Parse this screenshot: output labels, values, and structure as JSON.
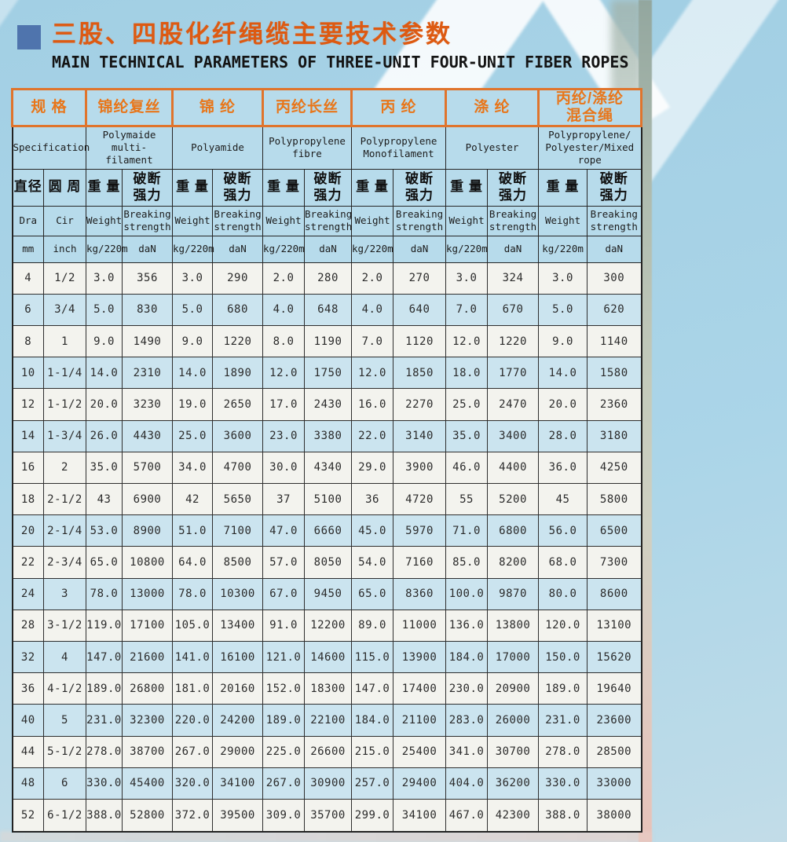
{
  "header": {
    "title_zh": "三股、四股化纤绳缆主要技术参数",
    "title_en": "MAIN TECHNICAL PARAMETERS OF THREE-UNIT FOUR-UNIT FIBER ROPES"
  },
  "table": {
    "spec": {
      "zh": "规 格",
      "en": "Specification",
      "diameter_zh": "直径",
      "diameter_en": "Dra",
      "diameter_unit": "mm",
      "circumference_zh": "圆 周",
      "circumference_en": "Cir",
      "circumference_unit": "inch"
    },
    "measures": {
      "weight_zh": "重 量",
      "weight_en": "Weight",
      "weight_unit": "kg/220m",
      "strength_zh": "破断\n强力",
      "strength_en": "Breaking\nstrength",
      "strength_unit": "daN"
    },
    "materials": [
      {
        "zh": "锦纶复丝",
        "en": "Polymaide multi-\nfilament"
      },
      {
        "zh": "锦 纶",
        "en": "Polyamide"
      },
      {
        "zh": "丙纶长丝",
        "en": "Polypropylene\nfibre"
      },
      {
        "zh": "丙 纶",
        "en": "Polypropylene\nMonofilament"
      },
      {
        "zh": "涤 纶",
        "en": "Polyester"
      },
      {
        "zh": "丙纶/涤纶\n混合绳",
        "en": "Polypropylene/\nPolyester/Mixed\nrope"
      }
    ],
    "rows": [
      {
        "dia": "4",
        "cir": "1/2",
        "shaded": false,
        "values": [
          "3.0",
          "356",
          "3.0",
          "290",
          "2.0",
          "280",
          "2.0",
          "270",
          "3.0",
          "324",
          "3.0",
          "300"
        ]
      },
      {
        "dia": "6",
        "cir": "3/4",
        "shaded": true,
        "values": [
          "5.0",
          "830",
          "5.0",
          "680",
          "4.0",
          "648",
          "4.0",
          "640",
          "7.0",
          "670",
          "5.0",
          "620"
        ]
      },
      {
        "dia": "8",
        "cir": "1",
        "shaded": false,
        "values": [
          "9.0",
          "1490",
          "9.0",
          "1220",
          "8.0",
          "1190",
          "7.0",
          "1120",
          "12.0",
          "1220",
          "9.0",
          "1140"
        ]
      },
      {
        "dia": "10",
        "cir": "1-1/4",
        "shaded": true,
        "values": [
          "14.0",
          "2310",
          "14.0",
          "1890",
          "12.0",
          "1750",
          "12.0",
          "1850",
          "18.0",
          "1770",
          "14.0",
          "1580"
        ]
      },
      {
        "dia": "12",
        "cir": "1-1/2",
        "shaded": false,
        "values": [
          "20.0",
          "3230",
          "19.0",
          "2650",
          "17.0",
          "2430",
          "16.0",
          "2270",
          "25.0",
          "2470",
          "20.0",
          "2360"
        ]
      },
      {
        "dia": "14",
        "cir": "1-3/4",
        "shaded": true,
        "values": [
          "26.0",
          "4430",
          "25.0",
          "3600",
          "23.0",
          "3380",
          "22.0",
          "3140",
          "35.0",
          "3400",
          "28.0",
          "3180"
        ]
      },
      {
        "dia": "16",
        "cir": "2",
        "shaded": false,
        "values": [
          "35.0",
          "5700",
          "34.0",
          "4700",
          "30.0",
          "4340",
          "29.0",
          "3900",
          "46.0",
          "4400",
          "36.0",
          "4250"
        ]
      },
      {
        "dia": "18",
        "cir": "2-1/2",
        "shaded": false,
        "values": [
          "43",
          "6900",
          "42",
          "5650",
          "37",
          "5100",
          "36",
          "4720",
          "55",
          "5200",
          "45",
          "5800"
        ]
      },
      {
        "dia": "20",
        "cir": "2-1/4",
        "shaded": true,
        "values": [
          "53.0",
          "8900",
          "51.0",
          "7100",
          "47.0",
          "6660",
          "45.0",
          "5970",
          "71.0",
          "6800",
          "56.0",
          "6500"
        ]
      },
      {
        "dia": "22",
        "cir": "2-3/4",
        "shaded": false,
        "values": [
          "65.0",
          "10800",
          "64.0",
          "8500",
          "57.0",
          "8050",
          "54.0",
          "7160",
          "85.0",
          "8200",
          "68.0",
          "7300"
        ]
      },
      {
        "dia": "24",
        "cir": "3",
        "shaded": true,
        "values": [
          "78.0",
          "13000",
          "78.0",
          "10300",
          "67.0",
          "9450",
          "65.0",
          "8360",
          "100.0",
          "9870",
          "80.0",
          "8600"
        ]
      },
      {
        "dia": "28",
        "cir": "3-1/2",
        "shaded": false,
        "values": [
          "119.0",
          "17100",
          "105.0",
          "13400",
          "91.0",
          "12200",
          "89.0",
          "11000",
          "136.0",
          "13800",
          "120.0",
          "13100"
        ]
      },
      {
        "dia": "32",
        "cir": "4",
        "shaded": true,
        "values": [
          "147.0",
          "21600",
          "141.0",
          "16100",
          "121.0",
          "14600",
          "115.0",
          "13900",
          "184.0",
          "17000",
          "150.0",
          "15620"
        ]
      },
      {
        "dia": "36",
        "cir": "4-1/2",
        "shaded": false,
        "values": [
          "189.0",
          "26800",
          "181.0",
          "20160",
          "152.0",
          "18300",
          "147.0",
          "17400",
          "230.0",
          "20900",
          "189.0",
          "19640"
        ]
      },
      {
        "dia": "40",
        "cir": "5",
        "shaded": true,
        "values": [
          "231.0",
          "32300",
          "220.0",
          "24200",
          "189.0",
          "22100",
          "184.0",
          "21100",
          "283.0",
          "26000",
          "231.0",
          "23600"
        ]
      },
      {
        "dia": "44",
        "cir": "5-1/2",
        "shaded": false,
        "values": [
          "278.0",
          "38700",
          "267.0",
          "29000",
          "225.0",
          "26600",
          "215.0",
          "25400",
          "341.0",
          "30700",
          "278.0",
          "28500"
        ]
      },
      {
        "dia": "48",
        "cir": "6",
        "shaded": true,
        "values": [
          "330.0",
          "45400",
          "320.0",
          "34100",
          "267.0",
          "30900",
          "257.0",
          "29400",
          "404.0",
          "36200",
          "330.0",
          "33000"
        ]
      },
      {
        "dia": "52",
        "cir": "6-1/2",
        "shaded": false,
        "values": [
          "388.0",
          "52800",
          "372.0",
          "39500",
          "309.0",
          "35700",
          "299.0",
          "34100",
          "467.0",
          "42300",
          "388.0",
          "38000"
        ]
      }
    ]
  }
}
